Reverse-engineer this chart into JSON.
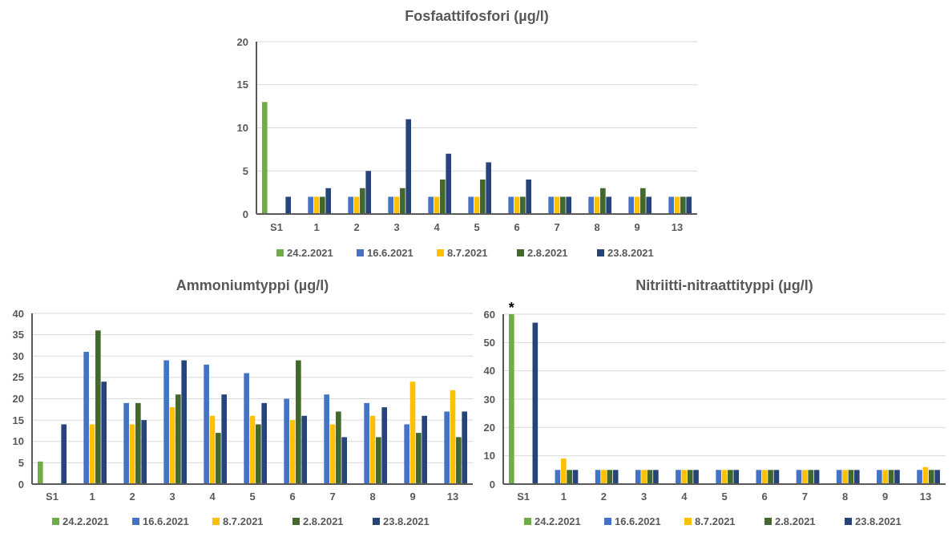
{
  "chart_data": [
    {
      "type": "bar",
      "title": "Fosfaattifosfori (µg/l)",
      "categories": [
        "S1",
        "1",
        "2",
        "3",
        "4",
        "5",
        "6",
        "7",
        "8",
        "9",
        "13"
      ],
      "ylim": [
        0,
        20
      ],
      "yticks": [
        0,
        5,
        10,
        15,
        20
      ],
      "grid": "y",
      "legend": "bottom",
      "series": [
        {
          "name": "24.2.2021",
          "color": "#70ad47",
          "values": [
            13,
            null,
            null,
            null,
            null,
            null,
            null,
            null,
            null,
            null,
            null
          ]
        },
        {
          "name": "16.6.2021",
          "color": "#4472c4",
          "values": [
            null,
            2,
            2,
            2,
            2,
            2,
            2,
            2,
            2,
            2,
            2
          ]
        },
        {
          "name": "8.7.2021",
          "color": "#ffc000",
          "values": [
            null,
            2,
            2,
            2,
            2,
            2,
            2,
            2,
            2,
            2,
            2
          ]
        },
        {
          "name": "2.8.2021",
          "color": "#43682b",
          "values": [
            null,
            2,
            3,
            3,
            4,
            4,
            2,
            2,
            3,
            3,
            2
          ]
        },
        {
          "name": "23.8.2021",
          "color": "#264478",
          "values": [
            2,
            3,
            5,
            11,
            7,
            6,
            4,
            2,
            2,
            2,
            2
          ]
        }
      ]
    },
    {
      "type": "bar",
      "title": "Ammoniumtyppi (µg/l)",
      "categories": [
        "S1",
        "1",
        "2",
        "3",
        "4",
        "5",
        "6",
        "7",
        "8",
        "9",
        "13"
      ],
      "ylim": [
        0,
        40
      ],
      "yticks": [
        0,
        5,
        10,
        15,
        20,
        25,
        30,
        35,
        40
      ],
      "grid": "y",
      "legend": "bottom",
      "series": [
        {
          "name": "24.2.2021",
          "color": "#70ad47",
          "values": [
            5.3,
            null,
            null,
            null,
            null,
            null,
            null,
            null,
            null,
            null,
            null
          ]
        },
        {
          "name": "16.6.2021",
          "color": "#4472c4",
          "values": [
            null,
            31,
            19,
            29,
            28,
            26,
            20,
            21,
            19,
            14,
            17
          ]
        },
        {
          "name": "8.7.2021",
          "color": "#ffc000",
          "values": [
            null,
            14,
            14,
            18,
            16,
            16,
            15,
            14,
            16,
            24,
            22
          ]
        },
        {
          "name": "2.8.2021",
          "color": "#43682b",
          "values": [
            null,
            36,
            19,
            21,
            12,
            14,
            29,
            17,
            11,
            12,
            11
          ]
        },
        {
          "name": "23.8.2021",
          "color": "#264478",
          "values": [
            14,
            24,
            15,
            29,
            21,
            19,
            16,
            11,
            18,
            16,
            17
          ]
        }
      ]
    },
    {
      "type": "bar",
      "title": "Nitriitti-nitraattityppi (µg/l)",
      "categories": [
        "S1",
        "1",
        "2",
        "3",
        "4",
        "5",
        "6",
        "7",
        "8",
        "9",
        "13"
      ],
      "ylim": [
        0,
        60
      ],
      "yticks": [
        0,
        10,
        20,
        30,
        40,
        50,
        60
      ],
      "grid": "y",
      "legend": "bottom",
      "annotations": [
        "*"
      ],
      "series": [
        {
          "name": "24.2.2021",
          "color": "#70ad47",
          "values": [
            60,
            null,
            null,
            null,
            null,
            null,
            null,
            null,
            null,
            null,
            null
          ]
        },
        {
          "name": "16.6.2021",
          "color": "#4472c4",
          "values": [
            null,
            5,
            5,
            5,
            5,
            5,
            5,
            5,
            5,
            5,
            5
          ]
        },
        {
          "name": "8.7.2021",
          "color": "#ffc000",
          "values": [
            null,
            9,
            5,
            5,
            5,
            5,
            5,
            5,
            5,
            5,
            6
          ]
        },
        {
          "name": "2.8.2021",
          "color": "#43682b",
          "values": [
            null,
            5,
            5,
            5,
            5,
            5,
            5,
            5,
            5,
            5,
            5
          ]
        },
        {
          "name": "23.8.2021",
          "color": "#264478",
          "values": [
            57,
            5,
            5,
            5,
            5,
            5,
            5,
            5,
            5,
            5,
            5
          ]
        }
      ]
    }
  ]
}
